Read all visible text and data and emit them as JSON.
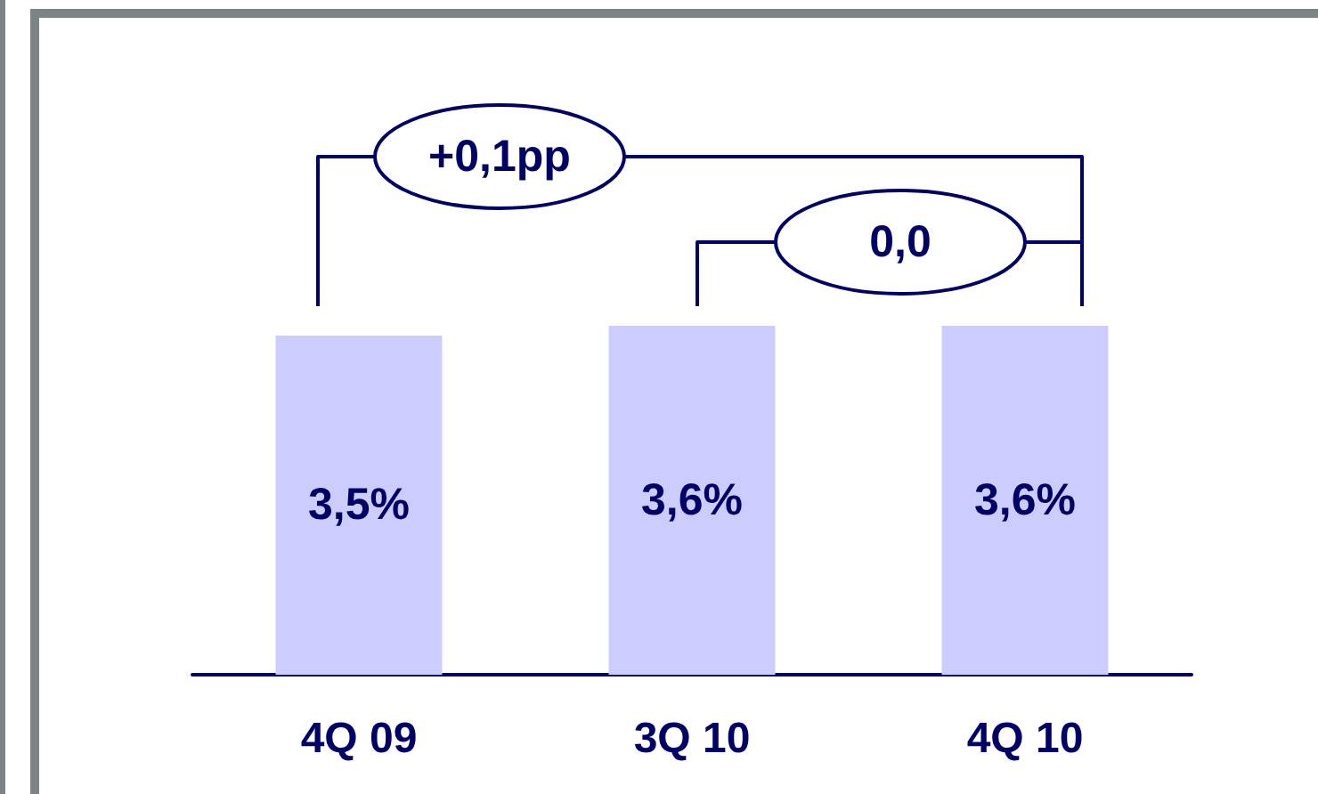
{
  "chart_data": {
    "type": "bar",
    "categories": [
      "4Q 09",
      "3Q 10",
      "4Q 10"
    ],
    "values": [
      3.5,
      3.6,
      3.6
    ],
    "color": "#ccccff",
    "value_labels": [
      "3,5%",
      "3,6%",
      "3,6%"
    ],
    "annotations": [
      "+0,1pp",
      "0,0"
    ]
  }
}
